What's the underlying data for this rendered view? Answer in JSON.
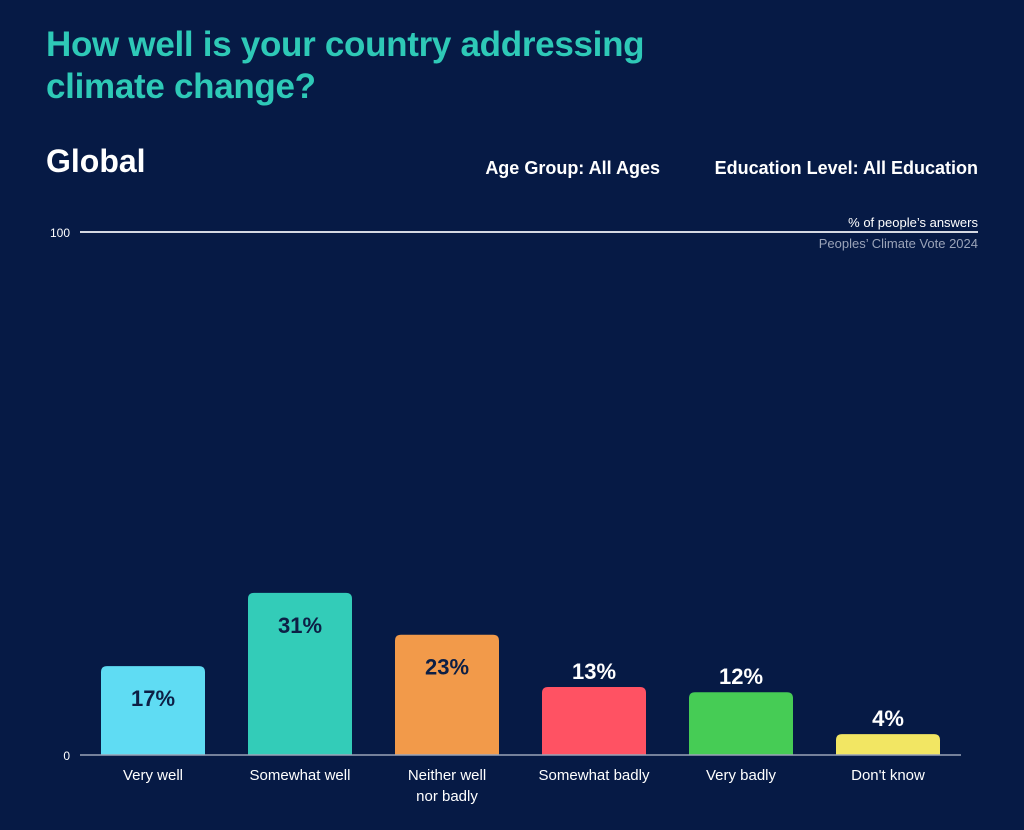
{
  "title": "How well is your country addressing climate change?",
  "region": "Global",
  "filters": {
    "age_group": "Age Group: All Ages",
    "education_level": "Education Level: All Education"
  },
  "unit_note": "% of people’s answers",
  "source": "Peoples’ Climate Vote 2024",
  "chart_data": {
    "type": "bar",
    "title": "How well is your country addressing climate change?",
    "xlabel": "",
    "ylabel": "% of people’s answers",
    "ylim": [
      0,
      100
    ],
    "yticks": [
      "0",
      "100"
    ],
    "grid": false,
    "categories": [
      "Very well",
      "Somewhat well",
      "Neither well nor badly",
      "Somewhat badly",
      "Very badly",
      "Don't know"
    ],
    "category_lines": [
      [
        "Very well"
      ],
      [
        "Somewhat well"
      ],
      [
        "Neither well",
        "nor badly"
      ],
      [
        "Somewhat badly"
      ],
      [
        "Very badly"
      ],
      [
        "Don't know"
      ]
    ],
    "values": [
      17,
      31,
      23,
      13,
      12,
      4
    ],
    "labels": [
      "17%",
      "31%",
      "23%",
      "13%",
      "12%",
      "4%"
    ],
    "colors": [
      "#5fdcf3",
      "#33ccb8",
      "#f29a4a",
      "#ff5263",
      "#46cc55",
      "#f2e663"
    ],
    "label_inside": [
      true,
      true,
      true,
      false,
      false,
      false
    ]
  }
}
